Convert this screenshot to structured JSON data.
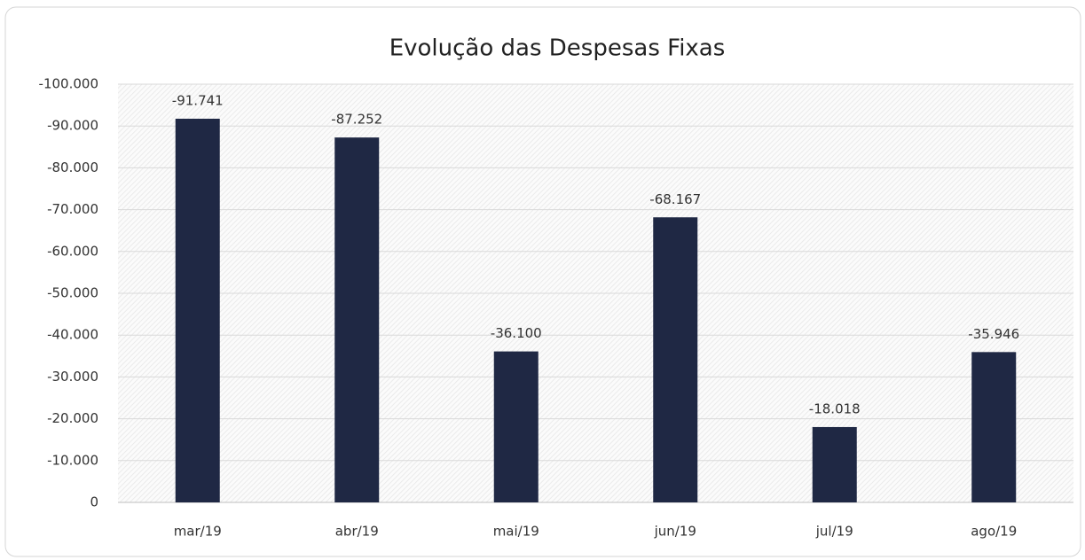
{
  "chart_data": {
    "type": "bar",
    "title": "Evolução das Despesas Fixas",
    "categories": [
      "mar/19",
      "abr/19",
      "mai/19",
      "jun/19",
      "jul/19",
      "ago/19"
    ],
    "values": [
      -91741,
      -87252,
      -36100,
      -68167,
      -18018,
      -35946
    ],
    "value_labels": [
      "-91.741",
      "-87.252",
      "-36.100",
      "-68.167",
      "-18.018",
      "-35.946"
    ],
    "color": "#1f2844",
    "ylim": [
      0,
      -100000
    ],
    "yticks": [
      0,
      {
        "value": -10000,
        "label": "-10.000"
      },
      {
        "value": -20000,
        "label": "-20.000"
      },
      {
        "value": -30000,
        "label": "-30.000"
      },
      {
        "value": -40000,
        "label": "-40.000"
      },
      {
        "value": -50000,
        "label": "-50.000"
      },
      {
        "value": -60000,
        "label": "-60.000"
      },
      {
        "value": -70000,
        "label": "-70.000"
      },
      {
        "value": -80000,
        "label": "-80.000"
      },
      {
        "value": -90000,
        "label": "-90.000"
      },
      {
        "value": -100000,
        "label": "-100.000"
      }
    ],
    "grid": true
  }
}
